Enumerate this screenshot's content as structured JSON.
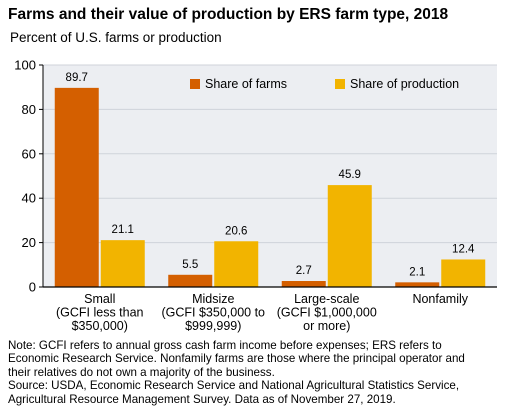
{
  "chart_data": {
    "type": "bar",
    "title": "Farms and their value of production by ERS farm type, 2018",
    "ylabel": "Percent of U.S. farms or production",
    "xlabel": "",
    "ylim": [
      0,
      100
    ],
    "yticks": [
      0,
      20,
      40,
      60,
      80,
      100
    ],
    "grid": true,
    "legend_position": "top-right",
    "categories": [
      [
        "Small",
        "(GCFI less than",
        "$350,000)"
      ],
      [
        "Midsize",
        "(GCFI $350,000 to",
        "$999,999)"
      ],
      [
        "Large-scale",
        "(GCFI $1,000,000",
        "or more)"
      ],
      [
        "Nonfamily"
      ]
    ],
    "series": [
      {
        "name": "Share of farms",
        "color": "#d45f00",
        "values": [
          89.7,
          5.5,
          2.7,
          2.1
        ],
        "labels": [
          "89.7",
          "5.5",
          "2.7",
          "2.1"
        ]
      },
      {
        "name": "Share of production",
        "color": "#f2b400",
        "values": [
          21.1,
          20.6,
          45.9,
          12.4
        ],
        "labels": [
          "21.1",
          "20.6",
          "45.9",
          "12.4"
        ]
      }
    ],
    "colors": {
      "grid": "#cfd3da",
      "plot_background": "#eceef2",
      "axis": "#000000"
    }
  },
  "notes": [
    "Note: GCFI refers to annual gross cash farm income before expenses; ERS refers to",
    "Economic Research Service. Nonfamily farms are those where the principal operator and",
    "their relatives do not own a majority of the business.",
    "Source: USDA, Economic Research Service and National Agricultural Statistics Service,",
    "Agricultural Resource Management Survey. Data as of November 27, 2019."
  ]
}
